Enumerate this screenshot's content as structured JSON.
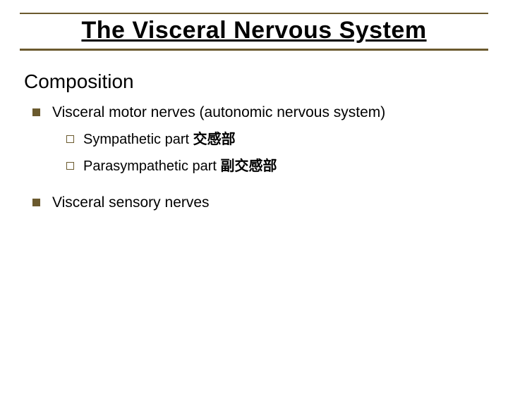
{
  "title": "The Visceral Nervous System",
  "section": "Composition",
  "items": [
    {
      "text": "Visceral motor nerves (autonomic nervous system)",
      "sub": [
        {
          "text": "Sympathetic part ",
          "cjk": "交感部"
        },
        {
          "text": "Parasympathetic part ",
          "cjk": "副交感部"
        }
      ]
    },
    {
      "text": "Visceral sensory nerves",
      "sub": []
    }
  ],
  "colors": {
    "accent": "#6b5a2e",
    "text": "#000000",
    "background": "#ffffff"
  },
  "fonts": {
    "title_size_pt": 34,
    "section_size_pt": 28,
    "body_size_pt": 21,
    "sub_size_pt": 20
  }
}
